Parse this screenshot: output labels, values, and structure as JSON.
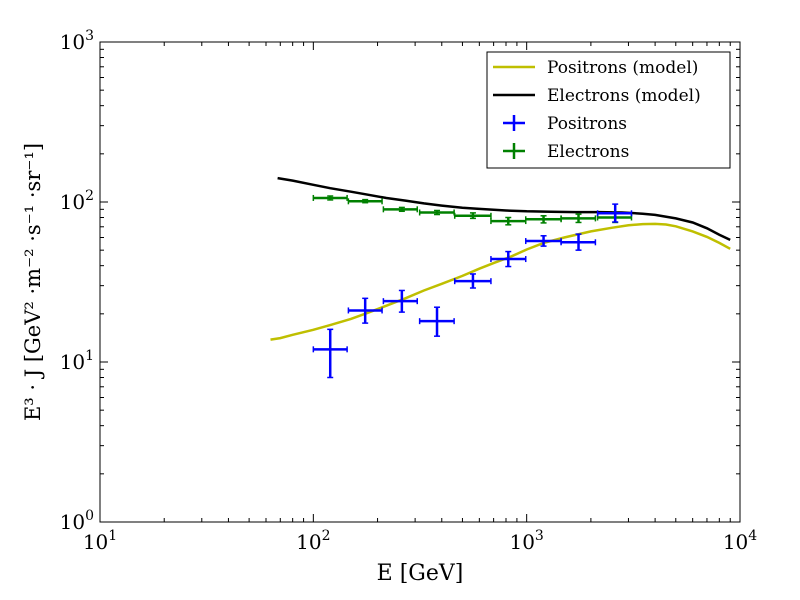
{
  "chart_data": {
    "type": "scatter",
    "xlabel": "E [GeV]",
    "ylabel": "E³ · J [GeV² ·m⁻² ·s⁻¹ ·sr⁻¹]",
    "xscale": "log",
    "yscale": "log",
    "xlim": [
      10,
      10000
    ],
    "ylim": [
      1,
      1000
    ],
    "xticks": [
      {
        "value": 10,
        "base": "10",
        "exp": "1"
      },
      {
        "value": 100,
        "base": "10",
        "exp": "2"
      },
      {
        "value": 1000,
        "base": "10",
        "exp": "3"
      },
      {
        "value": 10000,
        "base": "10",
        "exp": "4"
      }
    ],
    "yticks": [
      {
        "value": 1,
        "base": "10",
        "exp": "0"
      },
      {
        "value": 10,
        "base": "10",
        "exp": "1"
      },
      {
        "value": 100,
        "base": "10",
        "exp": "2"
      },
      {
        "value": 1000,
        "base": "10",
        "exp": "3"
      }
    ],
    "grid": false,
    "legend_position": "top-right",
    "legend": [
      {
        "label": "Positrons (model)",
        "kind": "line",
        "color": "#bfbf00"
      },
      {
        "label": "Electrons (model)",
        "kind": "line",
        "color": "#000000"
      },
      {
        "label": "Positrons",
        "kind": "errorbar",
        "color": "#0000ff"
      },
      {
        "label": "Electrons",
        "kind": "errorbar",
        "color": "#008000"
      }
    ],
    "lines": [
      {
        "name": "Positrons (model)",
        "color": "#bfbf00",
        "points": [
          [
            63,
            13.8
          ],
          [
            70,
            14.1
          ],
          [
            80,
            14.8
          ],
          [
            100,
            15.9
          ],
          [
            120,
            17
          ],
          [
            150,
            18.6
          ],
          [
            180,
            20.3
          ],
          [
            220,
            22.5
          ],
          [
            270,
            25
          ],
          [
            330,
            28
          ],
          [
            400,
            30.8
          ],
          [
            500,
            34.5
          ],
          [
            600,
            38.3
          ],
          [
            700,
            41.5
          ],
          [
            850,
            45.8
          ],
          [
            1000,
            50.5
          ],
          [
            1200,
            55.5
          ],
          [
            1500,
            60
          ],
          [
            2000,
            65.5
          ],
          [
            2500,
            69
          ],
          [
            3000,
            71.5
          ],
          [
            3500,
            72.8
          ],
          [
            4000,
            73
          ],
          [
            4500,
            72.3
          ],
          [
            5000,
            70.5
          ],
          [
            6000,
            65.5
          ],
          [
            7000,
            60.5
          ],
          [
            8000,
            55.5
          ],
          [
            9000,
            51
          ]
        ]
      },
      {
        "name": "Electrons (model)",
        "color": "#000000",
        "points": [
          [
            68,
            141
          ],
          [
            80,
            136
          ],
          [
            100,
            128
          ],
          [
            120,
            122
          ],
          [
            150,
            116
          ],
          [
            180,
            111
          ],
          [
            220,
            106
          ],
          [
            270,
            102
          ],
          [
            330,
            98
          ],
          [
            400,
            95
          ],
          [
            500,
            92
          ],
          [
            600,
            90.5
          ],
          [
            800,
            88.5
          ],
          [
            1000,
            87.5
          ],
          [
            1300,
            87
          ],
          [
            1700,
            86.5
          ],
          [
            2200,
            86.5
          ],
          [
            2800,
            86
          ],
          [
            3500,
            84.5
          ],
          [
            4000,
            83
          ],
          [
            5000,
            79
          ],
          [
            6000,
            74.5
          ],
          [
            7000,
            68.5
          ],
          [
            8000,
            62.5
          ],
          [
            9000,
            58
          ]
        ]
      }
    ],
    "series": [
      {
        "name": "Positrons",
        "color": "#0000ff",
        "points": [
          {
            "x": 120,
            "y": 12,
            "xlo": 100,
            "xhi": 144,
            "ylo": 8,
            "yhi": 16
          },
          {
            "x": 175,
            "y": 21,
            "xlo": 146,
            "xhi": 210,
            "ylo": 17.5,
            "yhi": 25
          },
          {
            "x": 260,
            "y": 24,
            "xlo": 213,
            "xhi": 307,
            "ylo": 20.5,
            "yhi": 28
          },
          {
            "x": 380,
            "y": 18,
            "xlo": 315,
            "xhi": 457,
            "ylo": 14.5,
            "yhi": 22
          },
          {
            "x": 560,
            "y": 32,
            "xlo": 460,
            "xhi": 680,
            "ylo": 29,
            "yhi": 35.5
          },
          {
            "x": 820,
            "y": 44,
            "xlo": 680,
            "xhi": 990,
            "ylo": 39.5,
            "yhi": 49
          },
          {
            "x": 1200,
            "y": 57,
            "xlo": 990,
            "xhi": 1450,
            "ylo": 53,
            "yhi": 61.5
          },
          {
            "x": 1750,
            "y": 56,
            "xlo": 1450,
            "xhi": 2100,
            "ylo": 50,
            "yhi": 63
          },
          {
            "x": 2600,
            "y": 85,
            "xlo": 2150,
            "xhi": 3100,
            "ylo": 75,
            "yhi": 97
          }
        ]
      },
      {
        "name": "Electrons",
        "color": "#008000",
        "points": [
          {
            "x": 120,
            "y": 106,
            "xlo": 100,
            "xhi": 144,
            "ylo": 103,
            "yhi": 109
          },
          {
            "x": 175,
            "y": 101,
            "xlo": 146,
            "xhi": 210,
            "ylo": 99,
            "yhi": 103.5
          },
          {
            "x": 260,
            "y": 90,
            "xlo": 213,
            "xhi": 307,
            "ylo": 87.5,
            "yhi": 92.5
          },
          {
            "x": 380,
            "y": 86,
            "xlo": 315,
            "xhi": 457,
            "ylo": 83.5,
            "yhi": 88.5
          },
          {
            "x": 560,
            "y": 82,
            "xlo": 460,
            "xhi": 680,
            "ylo": 79,
            "yhi": 85.5
          },
          {
            "x": 820,
            "y": 76,
            "xlo": 680,
            "xhi": 990,
            "ylo": 72,
            "yhi": 80
          },
          {
            "x": 1200,
            "y": 78,
            "xlo": 990,
            "xhi": 1450,
            "ylo": 74,
            "yhi": 82
          },
          {
            "x": 1750,
            "y": 79,
            "xlo": 1450,
            "xhi": 2100,
            "ylo": 74.5,
            "yhi": 84
          },
          {
            "x": 2600,
            "y": 80,
            "xlo": 2150,
            "xhi": 3100,
            "ylo": 74.5,
            "yhi": 86
          }
        ]
      }
    ]
  }
}
